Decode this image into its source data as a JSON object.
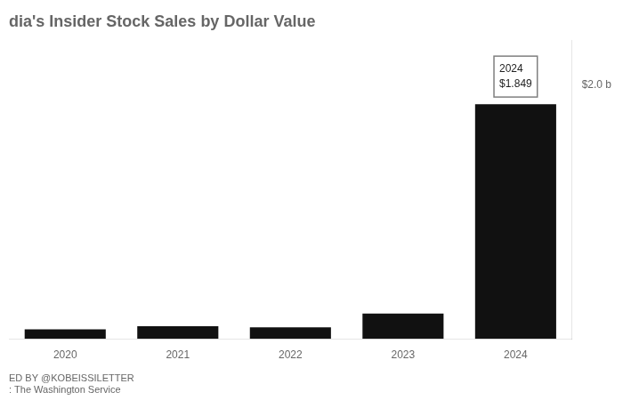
{
  "chart_data": {
    "type": "bar",
    "title": "dia's Insider Stock Sales by Dollar Value",
    "categories": [
      "2020",
      "2021",
      "2022",
      "2023",
      "2024"
    ],
    "values": [
      0.075,
      0.1,
      0.09,
      0.2,
      1.849
    ],
    "color": "#111111",
    "ylim": [
      0,
      2.35
    ],
    "yticks": [
      {
        "value": 2.0,
        "label": "$2.0 b"
      }
    ],
    "grid": false,
    "annotation": {
      "category": "2024",
      "text": "2024\n$1.849"
    },
    "footer": [
      "ED BY @KOBEISSILETTER",
      ": The Washington Service"
    ]
  }
}
